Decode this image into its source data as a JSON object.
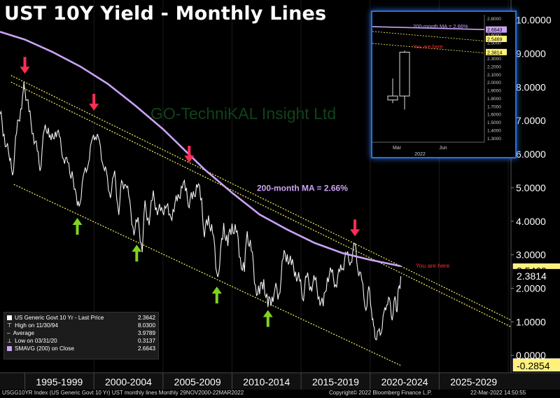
{
  "title": "UST 10Y Yield - Monthly Lines",
  "watermark": "GO-TechniKAL Insight Ltd",
  "chart_data": {
    "type": "candlestick",
    "y_axis": {
      "ylim": [
        -0.52,
        10.6
      ],
      "tick_labels": [
        "0.0000",
        "1.0000",
        "2.0000",
        "3.0000",
        "4.0000",
        "5.0000",
        "6.0000",
        "7.0000",
        "8.0000",
        "9.0000",
        "10.0000"
      ],
      "tick_values": [
        0,
        1,
        2,
        3,
        4,
        5,
        6,
        7,
        8,
        9,
        10
      ]
    },
    "x_axis": {
      "range": [
        1993.2,
        2030.2
      ],
      "period_labels": [
        "1995-1999",
        "2000-2004",
        "2005-2009",
        "2010-2014",
        "2015-2019",
        "2020-2024",
        "2025-2029"
      ],
      "period_starts": [
        1995,
        2000,
        2005,
        2010,
        2015,
        2020,
        2025,
        2030
      ]
    },
    "yield_series": [
      [
        1993.2,
        7.2
      ],
      [
        1993.5,
        6.6
      ],
      [
        1993.9,
        5.8
      ],
      [
        1994.1,
        5.4
      ],
      [
        1994.4,
        6.6
      ],
      [
        1994.7,
        7.4
      ],
      [
        1994.9,
        7.9
      ],
      [
        1995.0,
        8.03
      ],
      [
        1995.3,
        7.2
      ],
      [
        1995.6,
        6.7
      ],
      [
        1995.9,
        6.0
      ],
      [
        1996.1,
        5.6
      ],
      [
        1996.4,
        6.6
      ],
      [
        1996.7,
        6.9
      ],
      [
        1996.9,
        6.3
      ],
      [
        1997.2,
        6.8
      ],
      [
        1997.5,
        6.4
      ],
      [
        1997.8,
        6.0
      ],
      [
        1998.1,
        5.6
      ],
      [
        1998.5,
        5.4
      ],
      [
        1998.8,
        4.3
      ],
      [
        1999.0,
        4.7
      ],
      [
        1999.3,
        5.3
      ],
      [
        1999.6,
        5.9
      ],
      [
        1999.9,
        6.3
      ],
      [
        2000.1,
        6.7
      ],
      [
        2000.4,
        6.2
      ],
      [
        2000.7,
        5.8
      ],
      [
        2000.9,
        5.3
      ],
      [
        2001.2,
        4.9
      ],
      [
        2001.5,
        5.3
      ],
      [
        2001.8,
        4.4
      ],
      [
        2002.0,
        5.0
      ],
      [
        2002.3,
        5.3
      ],
      [
        2002.6,
        4.4
      ],
      [
        2002.9,
        3.8
      ],
      [
        2003.2,
        3.9
      ],
      [
        2003.5,
        3.3
      ],
      [
        2003.7,
        4.4
      ],
      [
        2004.0,
        4.1
      ],
      [
        2004.3,
        4.7
      ],
      [
        2004.6,
        4.4
      ],
      [
        2004.9,
        4.2
      ],
      [
        2005.2,
        4.6
      ],
      [
        2005.5,
        4.0
      ],
      [
        2005.8,
        4.5
      ],
      [
        2006.1,
        4.6
      ],
      [
        2006.4,
        5.2
      ],
      [
        2006.7,
        4.8
      ],
      [
        2006.9,
        4.6
      ],
      [
        2007.2,
        4.7
      ],
      [
        2007.5,
        5.2
      ],
      [
        2007.8,
        4.5
      ],
      [
        2008.0,
        3.7
      ],
      [
        2008.3,
        4.0
      ],
      [
        2008.6,
        3.8
      ],
      [
        2008.9,
        2.3
      ],
      [
        2009.1,
        2.8
      ],
      [
        2009.4,
        3.8
      ],
      [
        2009.7,
        3.4
      ],
      [
        2010.0,
        3.8
      ],
      [
        2010.3,
        3.8
      ],
      [
        2010.6,
        2.8
      ],
      [
        2010.9,
        2.6
      ],
      [
        2011.1,
        3.6
      ],
      [
        2011.4,
        3.2
      ],
      [
        2011.7,
        2.0
      ],
      [
        2012.0,
        1.9
      ],
      [
        2012.3,
        2.2
      ],
      [
        2012.6,
        1.5
      ],
      [
        2012.9,
        1.7
      ],
      [
        2013.1,
        2.0
      ],
      [
        2013.4,
        1.8
      ],
      [
        2013.7,
        2.9
      ],
      [
        2014.0,
        3.0
      ],
      [
        2014.3,
        2.7
      ],
      [
        2014.6,
        2.5
      ],
      [
        2014.9,
        2.2
      ],
      [
        2015.1,
        1.7
      ],
      [
        2015.4,
        2.3
      ],
      [
        2015.7,
        2.1
      ],
      [
        2016.0,
        2.2
      ],
      [
        2016.3,
        1.8
      ],
      [
        2016.6,
        1.4
      ],
      [
        2016.9,
        2.4
      ],
      [
        2017.2,
        2.4
      ],
      [
        2017.5,
        2.2
      ],
      [
        2017.8,
        2.4
      ],
      [
        2018.0,
        2.7
      ],
      [
        2018.3,
        2.9
      ],
      [
        2018.6,
        2.9
      ],
      [
        2018.9,
        3.2
      ],
      [
        2019.1,
        2.7
      ],
      [
        2019.4,
        2.1
      ],
      [
        2019.7,
        1.5
      ],
      [
        2019.9,
        1.9
      ],
      [
        2020.1,
        1.5
      ],
      [
        2020.25,
        0.7
      ],
      [
        2020.4,
        0.65
      ],
      [
        2020.6,
        0.55
      ],
      [
        2020.8,
        0.85
      ],
      [
        2021.0,
        1.1
      ],
      [
        2021.2,
        1.7
      ],
      [
        2021.4,
        1.5
      ],
      [
        2021.6,
        1.25
      ],
      [
        2021.8,
        1.55
      ],
      [
        2021.95,
        1.5
      ],
      [
        2022.05,
        1.8
      ],
      [
        2022.22,
        2.36
      ]
    ],
    "ma_series": [
      [
        1993.2,
        9.65
      ],
      [
        1995,
        9.42
      ],
      [
        1997,
        9.05
      ],
      [
        1999,
        8.62
      ],
      [
        2001,
        8.1
      ],
      [
        2003,
        7.45
      ],
      [
        2005,
        6.75
      ],
      [
        2006.5,
        6.15
      ],
      [
        2008,
        5.55
      ],
      [
        2010,
        4.85
      ],
      [
        2012,
        4.2
      ],
      [
        2014,
        3.75
      ],
      [
        2016,
        3.35
      ],
      [
        2018,
        3.05
      ],
      [
        2020,
        2.85
      ],
      [
        2022.22,
        2.66
      ]
    ],
    "channel_lines": [
      {
        "from": [
          1994.0,
          8.35
        ],
        "to": [
          2030.2,
          1.05
        ]
      },
      {
        "from": [
          1994.0,
          8.15
        ],
        "to": [
          2030.2,
          0.85
        ]
      },
      {
        "from": [
          1994.2,
          5.1
        ],
        "to": [
          2022.2,
          -0.3
        ]
      }
    ],
    "red_arrows": [
      [
        1995.0,
        8.4
      ],
      [
        2000.0,
        7.3
      ],
      [
        2006.9,
        5.75
      ],
      [
        2018.9,
        3.55
      ]
    ],
    "green_arrows": [
      [
        1998.8,
        4.1
      ],
      [
        2003.1,
        3.3
      ],
      [
        2008.9,
        2.05
      ],
      [
        2012.6,
        1.35
      ]
    ],
    "ma_annotation": "200-month MA = 2.66%",
    "you_are_here": "You are here",
    "price_tags": [
      {
        "value": 2.5469,
        "label": "2.5469",
        "color": "#fff17a",
        "text_color": "#000"
      },
      {
        "value": 2.3814,
        "label": "2.3814",
        "color": "#000",
        "text_color": "#fff"
      },
      {
        "value": -0.2854,
        "label": "-0.2854",
        "color": "#fff17a",
        "text_color": "#000"
      }
    ]
  },
  "inset": {
    "ma_annotation": "200-month MA = 2.66%",
    "you_are_here": "You are here",
    "ylim": [
      1.25,
      2.85
    ],
    "tick_labels": [
      "2.8000",
      "2.6000",
      "2.5000",
      "2.3000",
      "2.2000",
      "2.1000",
      "2.0000",
      "1.9000",
      "1.8000",
      "1.7000",
      "1.6000",
      "1.5000",
      "1.4000",
      "1.3000"
    ],
    "tick_values": [
      2.8,
      2.6,
      2.5,
      2.3,
      2.2,
      2.1,
      2.0,
      1.9,
      1.8,
      1.7,
      1.6,
      1.5,
      1.4,
      1.3
    ],
    "tags": [
      {
        "value": 2.6643,
        "label": "2.6643",
        "color": "#c9a3f5"
      },
      {
        "value": 2.5469,
        "label": "2.5469",
        "color": "#fff17a"
      },
      {
        "value": 2.3814,
        "label": "2.3814",
        "color": "#fff17a"
      }
    ],
    "x_labels": [
      "Mar",
      "Jun"
    ],
    "year_label": "2022",
    "candles": [
      {
        "x": 1,
        "open": 1.78,
        "close": 1.83,
        "high": 2.05,
        "low": 1.74
      },
      {
        "x": 2,
        "open": 1.83,
        "close": 2.38,
        "high": 2.4,
        "low": 1.66
      }
    ]
  },
  "legend": {
    "rows": [
      {
        "label": "US Generic Govt 10 Yr - Last Price",
        "value": "2.3642",
        "swatch": "#ffffff"
      },
      {
        "label": "High on 11/30/94",
        "value": "8.0300",
        "swatch": ""
      },
      {
        "label": "Average",
        "value": "3.9789",
        "swatch": ""
      },
      {
        "label": "Low on 03/31/20",
        "value": "0.3137",
        "swatch": ""
      },
      {
        "label": "SMAVG (200)  on Close",
        "value": "2.6643",
        "swatch": "#c9a3f5"
      }
    ]
  },
  "footer": {
    "left": "USGG10YR Index (US Generic Govt 10 Yr) UST monthly lines  Monthly 29NOV2000-22MAR2022",
    "center": "Copyright© 2022 Bloomberg Finance L.P.",
    "right": "22-Mar-2022  14:50:55"
  },
  "colors": {
    "ma": "#c9a3f5",
    "channel": "#e9e35a",
    "arrow_red": "#ff2d55",
    "arrow_green": "#7ed321",
    "inset_border": "#2a6fd6",
    "watermark": "#1e7a30"
  }
}
